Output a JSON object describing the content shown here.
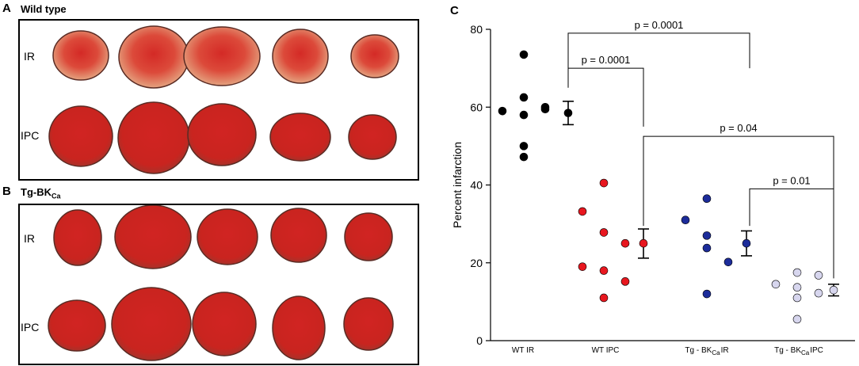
{
  "panel_a": {
    "letter": "A",
    "title": "Wild type",
    "rows": [
      "IR",
      "IPC"
    ]
  },
  "panel_b": {
    "letter": "B",
    "title_main": "Tg-BK",
    "title_sub": "Ca",
    "rows": [
      "IR",
      "IPC"
    ]
  },
  "panel_c": {
    "letter": "C"
  },
  "colors": {
    "wt_ir": "#000000",
    "wt_ipc": "#e8171f",
    "tg_ir": "#1c2c9a",
    "tg_ipc": "#d7d6ee",
    "tissue_red": "#d42a26",
    "tissue_pale": "#e4a27f"
  },
  "chart_data": {
    "type": "scatter",
    "title": "",
    "xlabel": "",
    "ylabel": "Percent infarction",
    "ylim": [
      0,
      80
    ],
    "yticks": [
      0,
      20,
      40,
      60,
      80
    ],
    "categories": [
      {
        "main": "WT IR",
        "sub": "",
        "suffix": ""
      },
      {
        "main": "WT IPC",
        "sub": "",
        "suffix": ""
      },
      {
        "main": "Tg - BK",
        "sub": "Ca",
        "suffix": "IR"
      },
      {
        "main": "Tg - BK",
        "sub": "Ca",
        "suffix": "IPC"
      }
    ],
    "series": [
      {
        "name": "WT IR",
        "color": "#000000",
        "points": [
          [
            -0.85,
            59
          ],
          [
            -0.55,
            62.5
          ],
          [
            -0.55,
            73.5
          ],
          [
            -0.55,
            58
          ],
          [
            -0.55,
            50
          ],
          [
            -0.55,
            47.2
          ],
          [
            -0.25,
            60
          ],
          [
            -0.25,
            59.5
          ]
        ],
        "mean": 58.5,
        "sem": [
          55.5,
          61.5
        ]
      },
      {
        "name": "WT IPC",
        "color": "#e8171f",
        "points": [
          [
            -0.85,
            33.2
          ],
          [
            -0.85,
            19
          ],
          [
            -0.55,
            40.5
          ],
          [
            -0.55,
            27.8
          ],
          [
            -0.55,
            18
          ],
          [
            -0.55,
            11
          ],
          [
            -0.25,
            25
          ],
          [
            -0.25,
            15.2
          ]
        ],
        "mean": 25,
        "sem": [
          21.2,
          28.7
        ]
      },
      {
        "name": "Tg-BKCa IR",
        "color": "#1c2c9a",
        "points": [
          [
            -0.85,
            31
          ],
          [
            -0.55,
            36.5
          ],
          [
            -0.55,
            27
          ],
          [
            -0.55,
            23.8
          ],
          [
            -0.55,
            12
          ],
          [
            -0.25,
            20.2
          ]
        ],
        "mean": 25,
        "sem": [
          21.8,
          28.2
        ]
      },
      {
        "name": "Tg-BKCa IPC",
        "color": "#d7d6ee",
        "points": [
          [
            -0.85,
            14.5
          ],
          [
            -0.55,
            17.5
          ],
          [
            -0.55,
            13.7
          ],
          [
            -0.55,
            11
          ],
          [
            -0.55,
            5.5
          ],
          [
            -0.25,
            16.8
          ],
          [
            -0.25,
            12.2
          ]
        ],
        "mean": 13,
        "sem": [
          11.5,
          14.5
        ]
      }
    ],
    "annotations": [
      {
        "label": "p = 0.0001",
        "from": 0,
        "to": 2,
        "from_y": 70,
        "to_y": 70,
        "top_y": 79
      },
      {
        "label": "p = 0.0001",
        "from": 0,
        "to": 1,
        "from_y": 65,
        "to_y": 55,
        "top_y": 70
      },
      {
        "label": "p = 0.04",
        "from": 1,
        "to": 3,
        "from_y": 29.5,
        "to_y": 38,
        "top_y": 52.5
      },
      {
        "label": "p = 0.01",
        "from": 2,
        "to": 3,
        "from_y": 29.5,
        "to_y": 16,
        "top_y": 39
      }
    ]
  }
}
